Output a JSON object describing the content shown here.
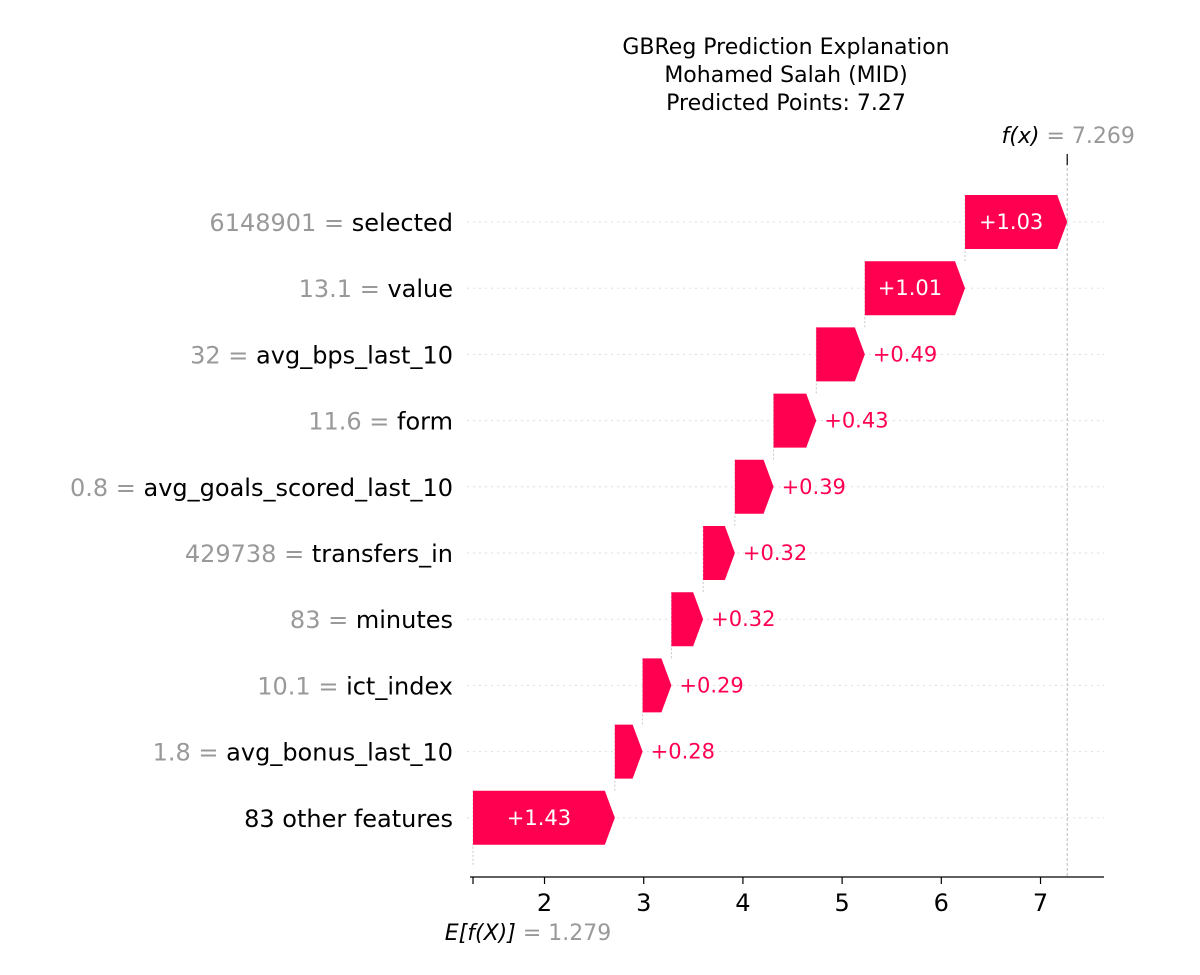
{
  "chart_data": {
    "type": "waterfall",
    "title_lines": [
      "GBReg Prediction Explanation",
      "Mohamed Salah (MID)",
      "Predicted Points: 7.27"
    ],
    "fx_label": "f(x)",
    "fx_value_text": "7.269",
    "fx_value": 7.269,
    "base_label": "E[f(X)]",
    "base_value_text": "1.279",
    "base_value": 1.279,
    "xlim": [
      1.279,
      7.6
    ],
    "xticks": [
      2,
      3,
      4,
      5,
      6,
      7
    ],
    "grid_horizontal": true,
    "features": [
      {
        "value": "6148901",
        "name": "selected",
        "shap": 1.03,
        "label": "+1.03"
      },
      {
        "value": "13.1",
        "name": "value",
        "shap": 1.01,
        "label": "+1.01"
      },
      {
        "value": "32",
        "name": "avg_bps_last_10",
        "shap": 0.49,
        "label": "+0.49"
      },
      {
        "value": "11.6",
        "name": "form",
        "shap": 0.43,
        "label": "+0.43"
      },
      {
        "value": "0.8",
        "name": "avg_goals_scored_last_10",
        "shap": 0.39,
        "label": "+0.39"
      },
      {
        "value": "429738",
        "name": "transfers_in",
        "shap": 0.32,
        "label": "+0.32"
      },
      {
        "value": "83",
        "name": "minutes",
        "shap": 0.32,
        "label": "+0.32"
      },
      {
        "value": "10.1",
        "name": "ict_index",
        "shap": 0.29,
        "label": "+0.29"
      },
      {
        "value": "1.8",
        "name": "avg_bonus_last_10",
        "shap": 0.28,
        "label": "+0.28"
      },
      {
        "value": "",
        "name": "83 other features",
        "shap": 1.43,
        "label": "+1.43"
      }
    ],
    "colors": {
      "positive": "#ff0051",
      "value_text": "#999999",
      "grid": "#dddddd",
      "axis": "#000000",
      "ref_line": "#bbbbbb"
    }
  }
}
